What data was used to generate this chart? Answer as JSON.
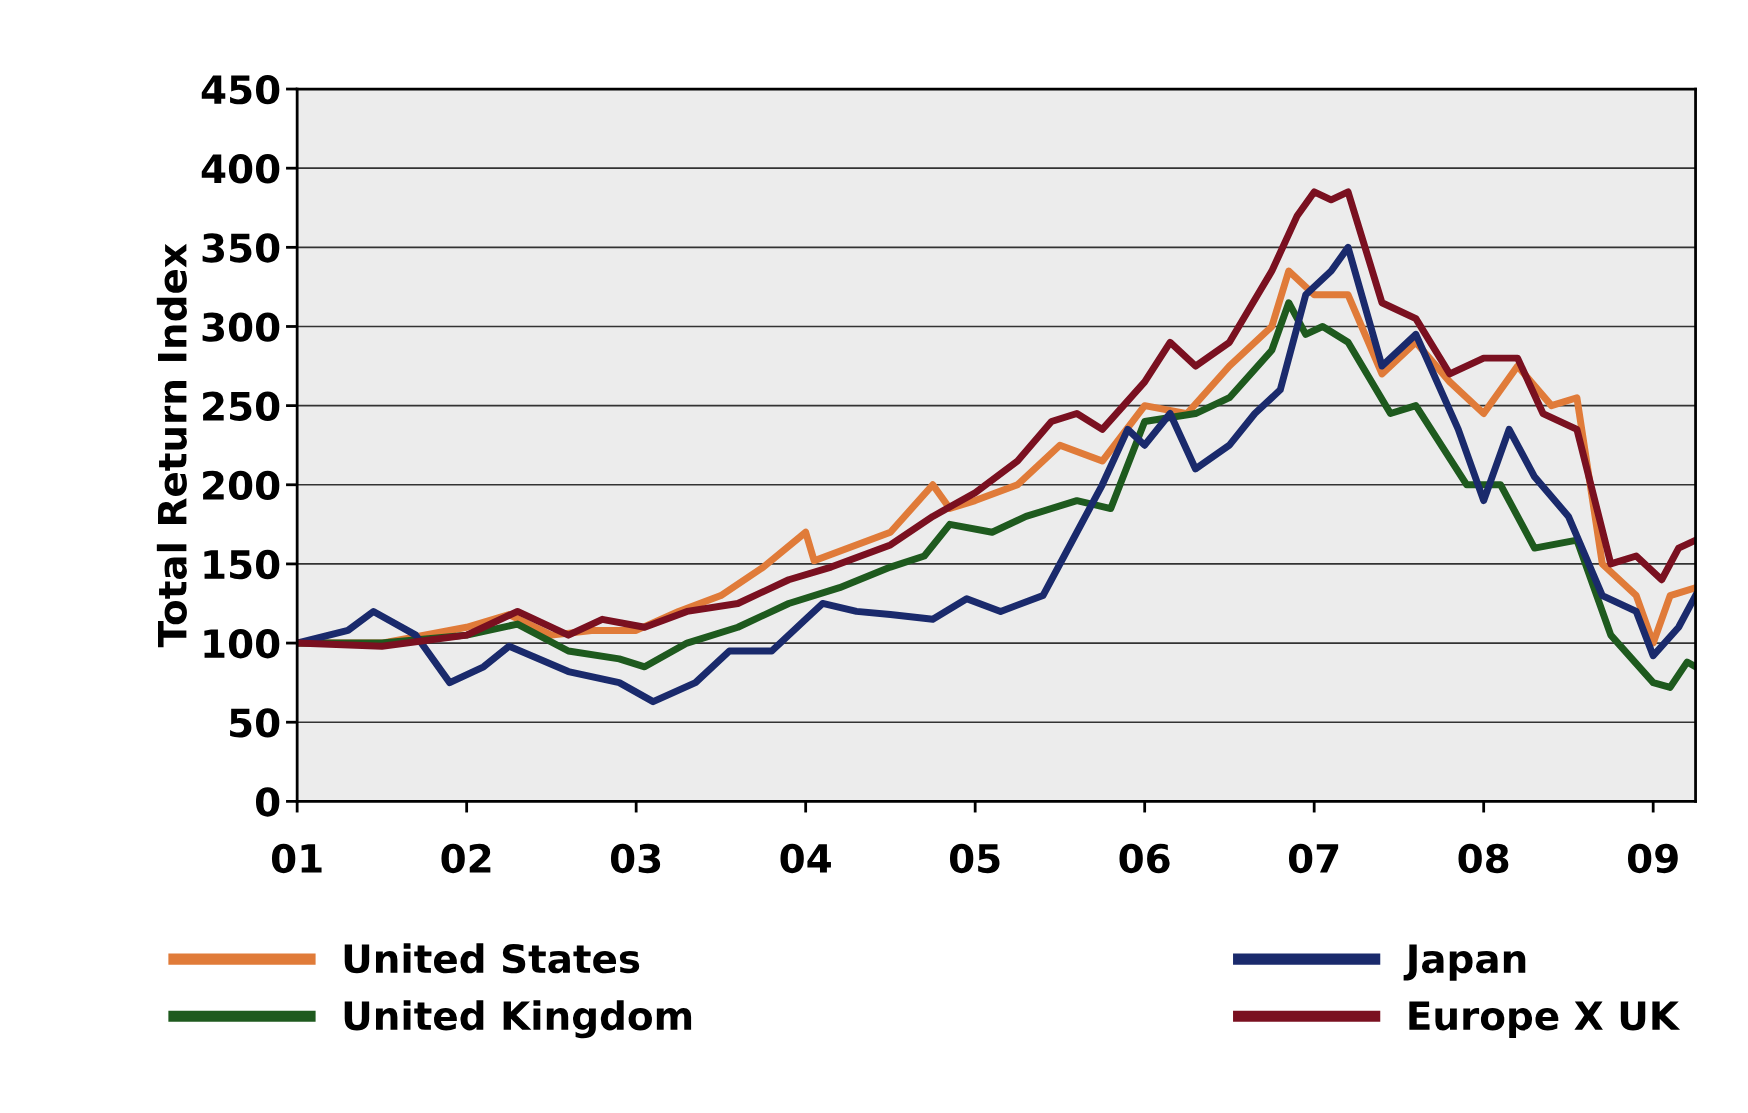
{
  "chart_data": {
    "type": "line",
    "ylabel": "Total Return Index",
    "xlim": [
      2001,
      2009.25
    ],
    "ylim": [
      0,
      450
    ],
    "xticks": [
      {
        "value": 2001,
        "label": "01"
      },
      {
        "value": 2002,
        "label": "02"
      },
      {
        "value": 2003,
        "label": "03"
      },
      {
        "value": 2004,
        "label": "04"
      },
      {
        "value": 2005,
        "label": "05"
      },
      {
        "value": 2006,
        "label": "06"
      },
      {
        "value": 2007,
        "label": "07"
      },
      {
        "value": 2008,
        "label": "08"
      },
      {
        "value": 2009,
        "label": "09"
      }
    ],
    "yticks": [
      0,
      50,
      100,
      150,
      200,
      250,
      300,
      350,
      400,
      450
    ],
    "grid": "y",
    "legend": "bottom",
    "marker": "none",
    "line_style": "solid",
    "series": [
      {
        "name": "United States",
        "color": "#e07b39",
        "x": [
          2001,
          2001.5,
          2002,
          2002.25,
          2002.5,
          2002.75,
          2003,
          2003.25,
          2003.5,
          2003.75,
          2004,
          2004.05,
          2004.5,
          2004.75,
          2004.85,
          2005,
          2005.25,
          2005.5,
          2005.75,
          2006,
          2006.25,
          2006.5,
          2006.75,
          2006.85,
          2007,
          2007.2,
          2007.4,
          2007.6,
          2007.8,
          2008,
          2008.2,
          2008.4,
          2008.55,
          2008.7,
          2008.9,
          2009,
          2009.1,
          2009.25
        ],
        "values": [
          100,
          100,
          110,
          118,
          105,
          108,
          108,
          120,
          130,
          148,
          170,
          152,
          170,
          200,
          185,
          190,
          200,
          225,
          215,
          250,
          245,
          275,
          300,
          335,
          320,
          320,
          270,
          290,
          265,
          245,
          275,
          250,
          255,
          150,
          130,
          100,
          130,
          135
        ]
      },
      {
        "name": "United Kingdom",
        "color": "#1e5a1e",
        "x": [
          2001,
          2001.5,
          2002,
          2002.3,
          2002.6,
          2002.9,
          2003.05,
          2003.3,
          2003.6,
          2003.9,
          2004.2,
          2004.5,
          2004.7,
          2004.85,
          2005.1,
          2005.3,
          2005.6,
          2005.8,
          2006,
          2006.3,
          2006.5,
          2006.75,
          2006.85,
          2006.95,
          2007.05,
          2007.2,
          2007.45,
          2007.6,
          2007.9,
          2008.1,
          2008.3,
          2008.55,
          2008.75,
          2009,
          2009.1,
          2009.2,
          2009.25
        ],
        "values": [
          100,
          100,
          105,
          112,
          95,
          90,
          85,
          100,
          110,
          125,
          135,
          148,
          155,
          175,
          170,
          180,
          190,
          185,
          240,
          245,
          255,
          285,
          315,
          295,
          300,
          290,
          245,
          250,
          200,
          200,
          160,
          165,
          105,
          75,
          72,
          88,
          85
        ]
      },
      {
        "name": "Japan",
        "color": "#1a2a6c",
        "x": [
          2001,
          2001.3,
          2001.45,
          2001.7,
          2001.9,
          2002.1,
          2002.25,
          2002.6,
          2002.9,
          2003.1,
          2003.35,
          2003.55,
          2003.8,
          2004,
          2004.1,
          2004.3,
          2004.5,
          2004.75,
          2004.95,
          2005.15,
          2005.4,
          2005.6,
          2005.75,
          2005.9,
          2006,
          2006.15,
          2006.3,
          2006.5,
          2006.65,
          2006.8,
          2006.95,
          2007.1,
          2007.2,
          2007.4,
          2007.6,
          2007.85,
          2008,
          2008.15,
          2008.3,
          2008.5,
          2008.7,
          2008.9,
          2009,
          2009.15,
          2009.25
        ],
        "values": [
          100,
          108,
          120,
          105,
          75,
          85,
          98,
          82,
          75,
          63,
          75,
          95,
          95,
          115,
          125,
          120,
          118,
          115,
          128,
          120,
          130,
          170,
          200,
          235,
          225,
          245,
          210,
          225,
          245,
          260,
          320,
          335,
          350,
          275,
          295,
          235,
          190,
          235,
          205,
          180,
          130,
          120,
          92,
          110,
          130
        ]
      },
      {
        "name": "Europe X UK",
        "color": "#7a1020",
        "x": [
          2001,
          2001.5,
          2002,
          2002.3,
          2002.6,
          2002.8,
          2003.05,
          2003.3,
          2003.6,
          2003.9,
          2004.15,
          2004.5,
          2004.75,
          2005,
          2005.25,
          2005.45,
          2005.6,
          2005.75,
          2006,
          2006.15,
          2006.3,
          2006.5,
          2006.75,
          2006.9,
          2007,
          2007.1,
          2007.2,
          2007.4,
          2007.6,
          2007.8,
          2008,
          2008.2,
          2008.35,
          2008.55,
          2008.75,
          2008.9,
          2009.05,
          2009.15,
          2009.25
        ],
        "values": [
          100,
          98,
          105,
          120,
          105,
          115,
          110,
          120,
          125,
          140,
          148,
          162,
          180,
          195,
          215,
          240,
          245,
          235,
          265,
          290,
          275,
          290,
          335,
          370,
          385,
          380,
          385,
          315,
          305,
          270,
          280,
          280,
          245,
          235,
          150,
          155,
          140,
          160,
          165
        ]
      }
    ]
  }
}
